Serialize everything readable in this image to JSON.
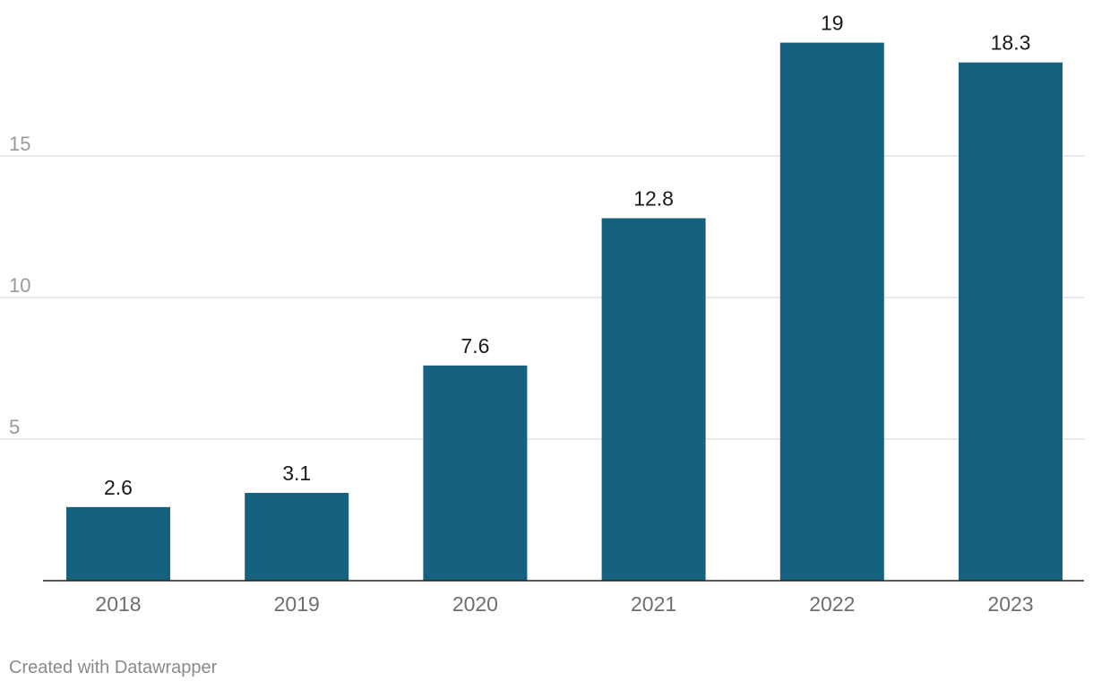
{
  "chart_data": {
    "type": "bar",
    "categories": [
      "2018",
      "2019",
      "2020",
      "2021",
      "2022",
      "2023"
    ],
    "values": [
      2.6,
      3.1,
      7.6,
      12.8,
      19,
      18.3
    ],
    "data_labels": [
      "2.6",
      "3.1",
      "7.6",
      "12.8",
      "19",
      "18.3"
    ],
    "ylim": [
      0,
      20
    ],
    "yticks": [
      5,
      10,
      15
    ],
    "ytick_labels": [
      "5",
      "10",
      "15"
    ],
    "grid": true,
    "bar_color": "#176180"
  },
  "footer": {
    "credit": "Created with Datawrapper"
  }
}
